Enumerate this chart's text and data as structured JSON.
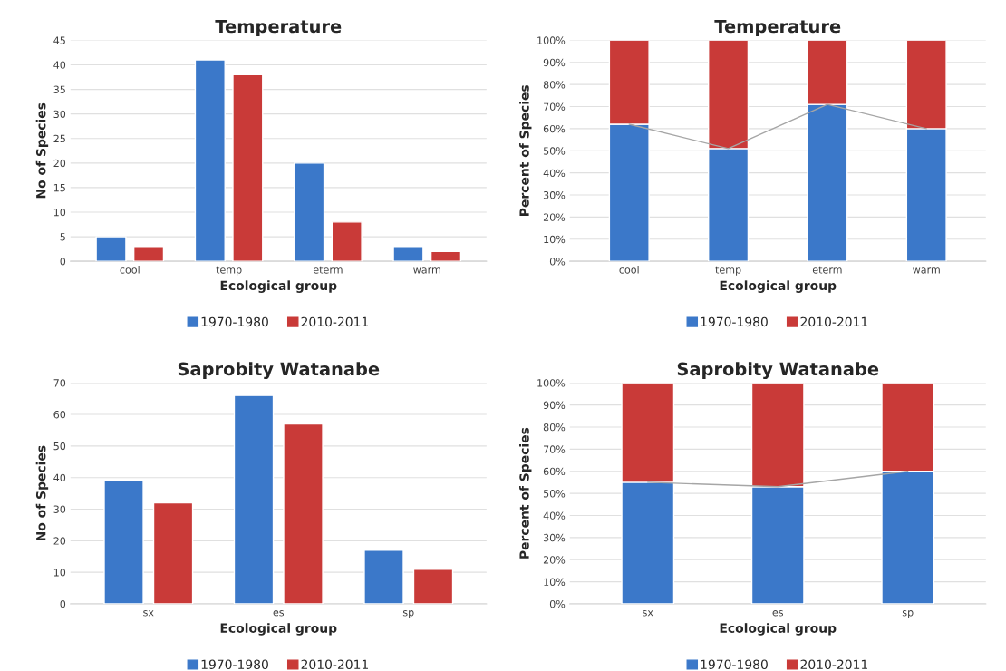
{
  "chart_data": [
    {
      "type": "bar",
      "title": "Temperature",
      "xlabel": "Ecological group",
      "ylabel": "No of Species",
      "categories": [
        "cool",
        "temp",
        "eterm",
        "warm"
      ],
      "series": [
        {
          "name": "1970-1980",
          "color": "#3b78c9",
          "values": [
            5,
            41,
            20,
            3
          ]
        },
        {
          "name": "2010-2011",
          "color": "#c93a38",
          "values": [
            3,
            38,
            8,
            2
          ]
        }
      ],
      "ylim": [
        0,
        45
      ],
      "yticks": [
        0,
        5,
        10,
        15,
        20,
        25,
        30,
        35,
        40,
        45
      ],
      "grid": "y",
      "legend": "bottom"
    },
    {
      "type": "bar",
      "stacked": true,
      "title": "Temperature",
      "xlabel": "Ecological group",
      "ylabel": "Percent of Species",
      "categories": [
        "cool",
        "temp",
        "eterm",
        "warm"
      ],
      "series": [
        {
          "name": "1970-1980",
          "color": "#3b78c9",
          "values": [
            62,
            51,
            71,
            60
          ]
        },
        {
          "name": "2010-2011",
          "color": "#c93a38",
          "values": [
            38,
            49,
            29,
            40
          ]
        },
        {
          "type": "line",
          "color": "#a6a6a6",
          "values": [
            62,
            51,
            71,
            60
          ]
        }
      ],
      "ylim": [
        0,
        100
      ],
      "yticks": [
        {
          "value": 0,
          "label": "0%"
        },
        {
          "value": 10,
          "label": "10%"
        },
        {
          "value": 20,
          "label": "20%"
        },
        {
          "value": 30,
          "label": "30%"
        },
        {
          "value": 40,
          "label": "40%"
        },
        {
          "value": 50,
          "label": "50%"
        },
        {
          "value": 60,
          "label": "60%"
        },
        {
          "value": 70,
          "label": "70%"
        },
        {
          "value": 80,
          "label": "80%"
        },
        {
          "value": 90,
          "label": "90%"
        },
        {
          "value": 100,
          "label": "100%"
        }
      ],
      "grid": "y",
      "legend": "bottom"
    },
    {
      "type": "bar",
      "title": "Saprobity Watanabe",
      "xlabel": "Ecological group",
      "ylabel": "No of Species",
      "categories": [
        "sx",
        "es",
        "sp"
      ],
      "series": [
        {
          "name": "1970-1980",
          "color": "#3b78c9",
          "values": [
            39,
            66,
            17
          ]
        },
        {
          "name": "2010-2011",
          "color": "#c93a38",
          "values": [
            32,
            57,
            11
          ]
        }
      ],
      "ylim": [
        0,
        70
      ],
      "yticks": [
        0,
        10,
        20,
        30,
        40,
        50,
        60,
        70
      ],
      "grid": "y",
      "legend": "bottom"
    },
    {
      "type": "bar",
      "stacked": true,
      "title": "Saprobity Watanabe",
      "xlabel": "Ecological group",
      "ylabel": "Percent of Species",
      "categories": [
        "sx",
        "es",
        "sp"
      ],
      "series": [
        {
          "name": "1970-1980",
          "color": "#3b78c9",
          "values": [
            55,
            53,
            60
          ]
        },
        {
          "name": "2010-2011",
          "color": "#c93a38",
          "values": [
            45,
            47,
            40
          ]
        },
        {
          "type": "line",
          "color": "#a6a6a6",
          "values": [
            55,
            53,
            60
          ]
        }
      ],
      "ylim": [
        0,
        100
      ],
      "yticks": [
        {
          "value": 0,
          "label": "0%"
        },
        {
          "value": 10,
          "label": "10%"
        },
        {
          "value": 20,
          "label": "20%"
        },
        {
          "value": 30,
          "label": "30%"
        },
        {
          "value": 40,
          "label": "40%"
        },
        {
          "value": 50,
          "label": "50%"
        },
        {
          "value": 60,
          "label": "60%"
        },
        {
          "value": 70,
          "label": "70%"
        },
        {
          "value": 80,
          "label": "80%"
        },
        {
          "value": 90,
          "label": "90%"
        },
        {
          "value": 100,
          "label": "100%"
        }
      ],
      "grid": "y",
      "legend": "bottom"
    }
  ]
}
